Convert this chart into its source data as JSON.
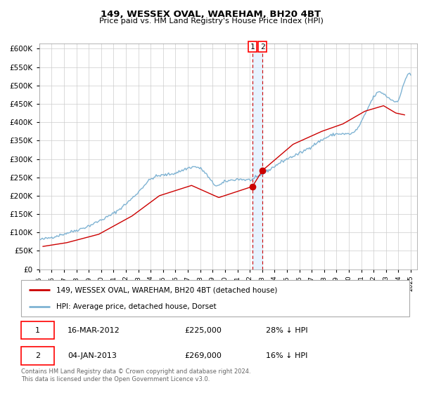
{
  "title": "149, WESSEX OVAL, WAREHAM, BH20 4BT",
  "subtitle": "Price paid vs. HM Land Registry's House Price Index (HPI)",
  "ytick_values": [
    0,
    50000,
    100000,
    150000,
    200000,
    250000,
    300000,
    350000,
    400000,
    450000,
    500000,
    550000,
    600000
  ],
  "ylim": [
    0,
    615000
  ],
  "xlim_start": 1995.0,
  "xlim_end": 2025.5,
  "ann1_x": 2012.21,
  "ann1_y": 225000,
  "ann2_x": 2013.03,
  "ann2_y": 269000,
  "legend1": "149, WESSEX OVAL, WAREHAM, BH20 4BT (detached house)",
  "legend2": "HPI: Average price, detached house, Dorset",
  "footer": "Contains HM Land Registry data © Crown copyright and database right 2024.\nThis data is licensed under the Open Government Licence v3.0.",
  "table_row1": [
    "1",
    "16-MAR-2012",
    "£225,000",
    "28% ↓ HPI"
  ],
  "table_row2": [
    "2",
    "04-JAN-2013",
    "£269,000",
    "16% ↓ HPI"
  ],
  "hpi_color": "#7fb3d3",
  "price_color": "#cc0000",
  "vline_color": "#cc0000",
  "shade_color": "#ddeeff",
  "grid_color": "#cccccc"
}
